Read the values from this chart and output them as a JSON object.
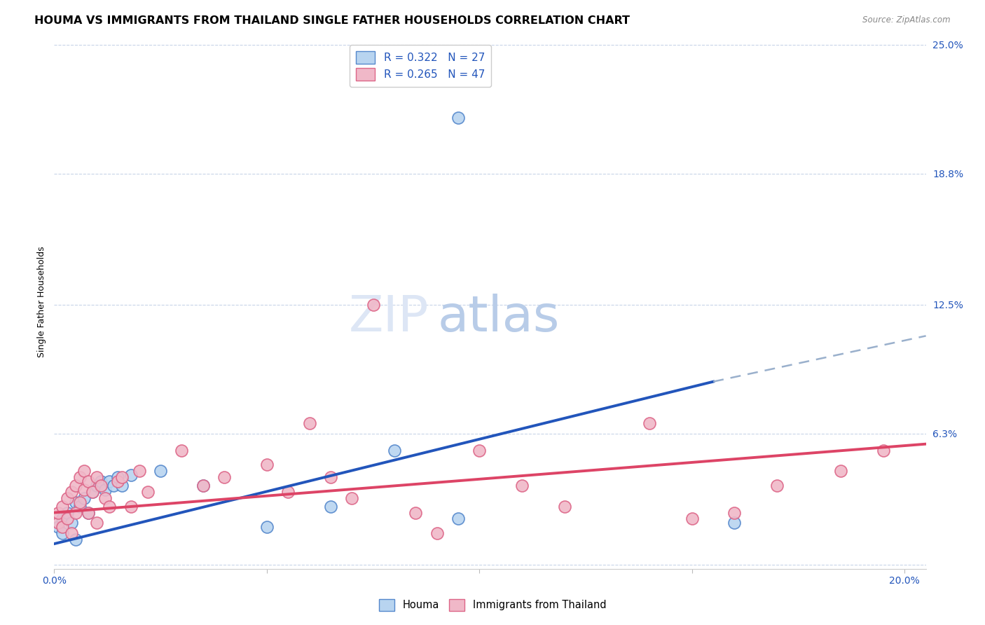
{
  "title": "HOUMA VS IMMIGRANTS FROM THAILAND SINGLE FATHER HOUSEHOLDS CORRELATION CHART",
  "source": "Source: ZipAtlas.com",
  "ylabel_label": "Single Father Households",
  "x_ticks": [
    0.0,
    0.05,
    0.1,
    0.15,
    0.2
  ],
  "x_tick_labels": [
    "0.0%",
    "",
    "",
    "",
    "20.0%"
  ],
  "y_ticks": [
    0.0,
    0.063,
    0.125,
    0.188,
    0.25
  ],
  "y_tick_labels": [
    "",
    "6.3%",
    "12.5%",
    "18.8%",
    "25.0%"
  ],
  "xlim": [
    0.0,
    0.205
  ],
  "ylim": [
    -0.002,
    0.255
  ],
  "houma_color": "#b8d4f0",
  "houma_edge_color": "#5588cc",
  "thailand_color": "#f0b8c8",
  "thailand_edge_color": "#dd6688",
  "houma_line_color": "#2255bb",
  "thailand_line_color": "#dd4466",
  "houma_trend_ext_color": "#9ab0cc",
  "houma_points": [
    [
      0.001,
      0.018
    ],
    [
      0.002,
      0.022
    ],
    [
      0.002,
      0.015
    ],
    [
      0.003,
      0.025
    ],
    [
      0.004,
      0.02
    ],
    [
      0.005,
      0.03
    ],
    [
      0.005,
      0.012
    ],
    [
      0.006,
      0.028
    ],
    [
      0.007,
      0.032
    ],
    [
      0.008,
      0.025
    ],
    [
      0.009,
      0.035
    ],
    [
      0.01,
      0.038
    ],
    [
      0.011,
      0.04
    ],
    [
      0.012,
      0.036
    ],
    [
      0.013,
      0.04
    ],
    [
      0.014,
      0.038
    ],
    [
      0.015,
      0.042
    ],
    [
      0.016,
      0.038
    ],
    [
      0.018,
      0.043
    ],
    [
      0.025,
      0.045
    ],
    [
      0.035,
      0.038
    ],
    [
      0.05,
      0.018
    ],
    [
      0.065,
      0.028
    ],
    [
      0.08,
      0.055
    ],
    [
      0.095,
      0.022
    ],
    [
      0.095,
      0.215
    ],
    [
      0.16,
      0.02
    ]
  ],
  "thailand_points": [
    [
      0.001,
      0.02
    ],
    [
      0.001,
      0.025
    ],
    [
      0.002,
      0.018
    ],
    [
      0.002,
      0.028
    ],
    [
      0.003,
      0.022
    ],
    [
      0.003,
      0.032
    ],
    [
      0.004,
      0.015
    ],
    [
      0.004,
      0.035
    ],
    [
      0.005,
      0.025
    ],
    [
      0.005,
      0.038
    ],
    [
      0.006,
      0.03
    ],
    [
      0.006,
      0.042
    ],
    [
      0.007,
      0.036
    ],
    [
      0.007,
      0.045
    ],
    [
      0.008,
      0.025
    ],
    [
      0.008,
      0.04
    ],
    [
      0.009,
      0.035
    ],
    [
      0.01,
      0.042
    ],
    [
      0.01,
      0.02
    ],
    [
      0.011,
      0.038
    ],
    [
      0.012,
      0.032
    ],
    [
      0.013,
      0.028
    ],
    [
      0.015,
      0.04
    ],
    [
      0.016,
      0.042
    ],
    [
      0.018,
      0.028
    ],
    [
      0.02,
      0.045
    ],
    [
      0.022,
      0.035
    ],
    [
      0.03,
      0.055
    ],
    [
      0.035,
      0.038
    ],
    [
      0.04,
      0.042
    ],
    [
      0.05,
      0.048
    ],
    [
      0.055,
      0.035
    ],
    [
      0.06,
      0.068
    ],
    [
      0.065,
      0.042
    ],
    [
      0.07,
      0.032
    ],
    [
      0.075,
      0.125
    ],
    [
      0.085,
      0.025
    ],
    [
      0.09,
      0.015
    ],
    [
      0.1,
      0.055
    ],
    [
      0.11,
      0.038
    ],
    [
      0.12,
      0.028
    ],
    [
      0.14,
      0.068
    ],
    [
      0.15,
      0.022
    ],
    [
      0.16,
      0.025
    ],
    [
      0.17,
      0.038
    ],
    [
      0.185,
      0.045
    ],
    [
      0.195,
      0.055
    ]
  ],
  "grid_color": "#c8d4e8",
  "bg_color": "#ffffff",
  "title_fontsize": 11.5,
  "axis_label_fontsize": 9,
  "tick_label_fontsize": 10,
  "legend_fontsize": 11,
  "houma_trend_start_x": 0.0,
  "houma_trend_end_solid_x": 0.155,
  "houma_trend_end_x": 0.205,
  "houma_trend_start_y": 0.01,
  "houma_trend_end_y": 0.088,
  "houma_trend_ext_end_y": 0.11,
  "thailand_trend_start_x": 0.0,
  "thailand_trend_end_x": 0.205,
  "thailand_trend_start_y": 0.025,
  "thailand_trend_end_y": 0.058
}
